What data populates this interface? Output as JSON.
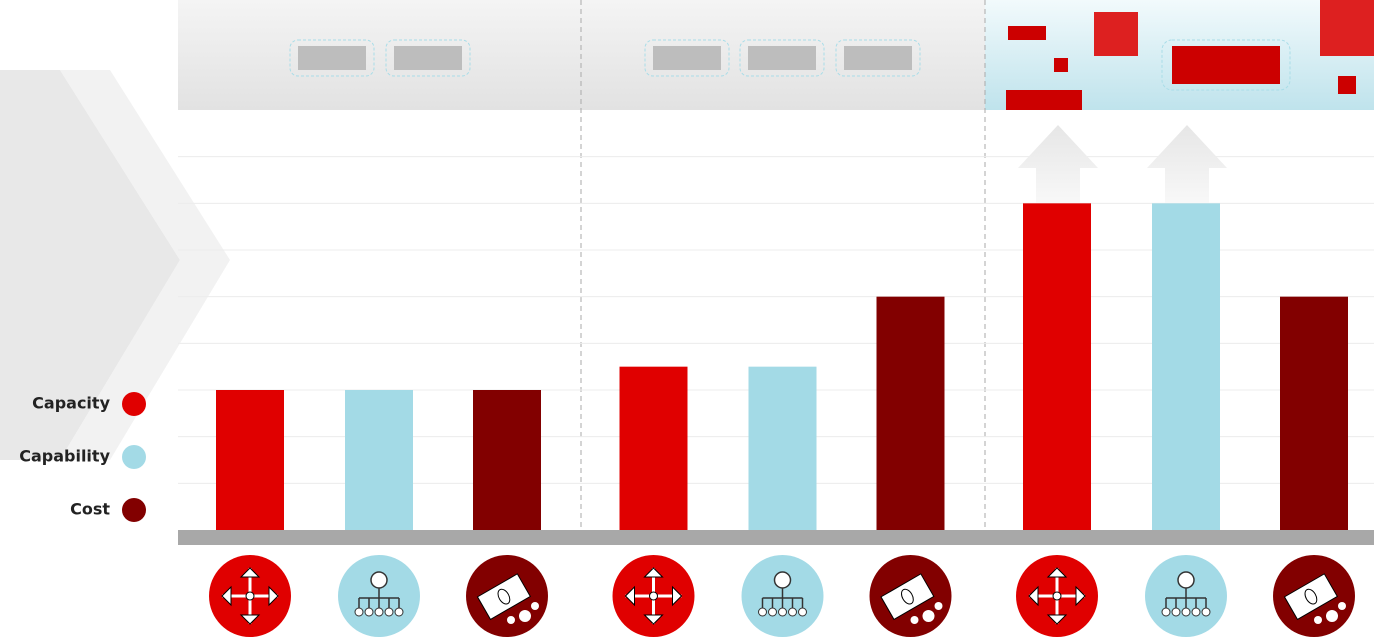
{
  "chart_data": {
    "type": "bar",
    "groups": 3,
    "series": [
      {
        "name": "Capacity",
        "color": "#e00000",
        "values": [
          3,
          3.5,
          7
        ]
      },
      {
        "name": "Capability",
        "color": "#a3dae6",
        "values": [
          3,
          3.5,
          7
        ]
      },
      {
        "name": "Cost",
        "color": "#820000",
        "values": [
          3,
          5,
          5
        ]
      }
    ],
    "ylim": [
      0,
      9
    ],
    "yticks": [
      1,
      2,
      3,
      4,
      5,
      6,
      7,
      8
    ],
    "grid": true
  }
}
